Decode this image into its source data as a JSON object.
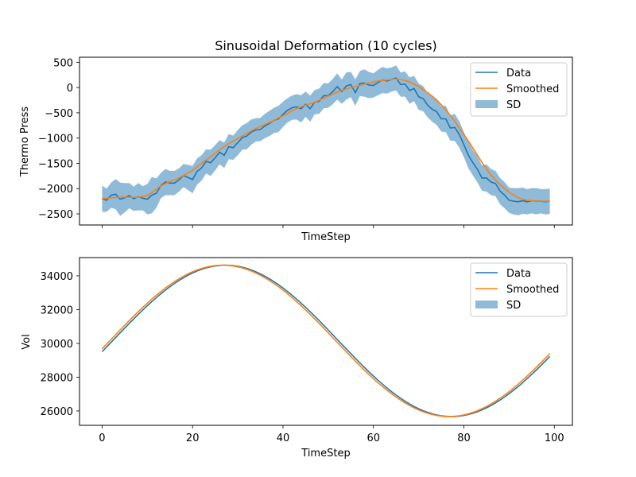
{
  "chart_data": [
    {
      "type": "line",
      "title": "Sinusoidal Deformation (10 cycles)",
      "xlabel": "TimeStep",
      "ylabel": "Thermo Press",
      "xlim": [
        -5,
        104
      ],
      "ylim": [
        -2720,
        600
      ],
      "xticks": [
        0,
        20,
        40,
        60,
        80,
        100
      ],
      "xtick_labels_visible": false,
      "yticks": [
        500,
        0,
        -500,
        -1000,
        -1500,
        -2000,
        -2500
      ],
      "ytick_labels": [
        "500",
        "0",
        "−500",
        "−1000",
        "−1500",
        "−2000",
        "−2500"
      ],
      "grid": false,
      "legend": {
        "placement": "top-right",
        "entries": [
          "Data",
          "Smoothed",
          "SD"
        ]
      },
      "colors": {
        "data": "#1f77b4",
        "smoothed": "#ff7f0e",
        "sd": "#1f77b4"
      },
      "x": [
        0,
        1,
        2,
        3,
        4,
        5,
        6,
        7,
        8,
        9,
        10,
        11,
        12,
        13,
        14,
        15,
        16,
        17,
        18,
        19,
        20,
        21,
        22,
        23,
        24,
        25,
        26,
        27,
        28,
        29,
        30,
        31,
        32,
        33,
        34,
        35,
        36,
        37,
        38,
        39,
        40,
        41,
        42,
        43,
        44,
        45,
        46,
        47,
        48,
        49,
        50,
        51,
        52,
        53,
        54,
        55,
        56,
        57,
        58,
        59,
        60,
        61,
        62,
        63,
        64,
        65,
        66,
        67,
        68,
        69,
        70,
        71,
        72,
        73,
        74,
        75,
        76,
        77,
        78,
        79,
        80,
        81,
        82,
        83,
        84,
        85,
        86,
        87,
        88,
        89,
        90,
        91,
        92,
        93,
        94,
        95,
        96,
        97,
        98,
        99
      ],
      "series": [
        {
          "name": "Data",
          "values": [
            -2200,
            -2230,
            -2130,
            -2110,
            -2210,
            -2180,
            -2140,
            -2200,
            -2160,
            -2190,
            -2210,
            -2130,
            -2090,
            -1940,
            -1870,
            -1890,
            -1890,
            -1830,
            -1740,
            -1780,
            -1820,
            -1660,
            -1590,
            -1460,
            -1490,
            -1390,
            -1280,
            -1340,
            -1170,
            -1190,
            -1090,
            -990,
            -960,
            -880,
            -840,
            -830,
            -760,
            -710,
            -650,
            -620,
            -530,
            -450,
            -400,
            -380,
            -420,
            -330,
            -420,
            -290,
            -270,
            -160,
            -160,
            -80,
            20,
            -80,
            30,
            60,
            -100,
            80,
            90,
            50,
            40,
            100,
            150,
            130,
            160,
            190,
            60,
            70,
            -60,
            -20,
            -180,
            -220,
            -350,
            -430,
            -480,
            -620,
            -620,
            -800,
            -790,
            -930,
            -1130,
            -1340,
            -1490,
            -1620,
            -1790,
            -1790,
            -1870,
            -1900,
            -2050,
            -2130,
            -2230,
            -2250,
            -2260,
            -2240,
            -2260,
            -2240,
            -2250,
            -2250,
            -2260,
            -2250
          ]
        },
        {
          "name": "Smoothed",
          "values": [
            -2200,
            -2190,
            -2180,
            -2175,
            -2170,
            -2170,
            -2170,
            -2172,
            -2170,
            -2160,
            -2140,
            -2080,
            -2010,
            -1950,
            -1900,
            -1860,
            -1830,
            -1790,
            -1740,
            -1690,
            -1640,
            -1570,
            -1500,
            -1430,
            -1370,
            -1300,
            -1230,
            -1170,
            -1110,
            -1060,
            -1010,
            -960,
            -910,
            -860,
            -810,
            -770,
            -730,
            -690,
            -650,
            -600,
            -560,
            -510,
            -460,
            -420,
            -380,
            -350,
            -320,
            -290,
            -250,
            -210,
            -170,
            -130,
            -90,
            -60,
            -30,
            0,
            20,
            40,
            70,
            90,
            110,
            130,
            140,
            150,
            160,
            170,
            160,
            140,
            110,
            70,
            20,
            -40,
            -100,
            -170,
            -250,
            -340,
            -440,
            -550,
            -670,
            -800,
            -930,
            -1060,
            -1200,
            -1340,
            -1480,
            -1610,
            -1730,
            -1830,
            -1920,
            -2000,
            -2070,
            -2130,
            -2180,
            -2210,
            -2230,
            -2240,
            -2250,
            -2250,
            -2250,
            -2250
          ]
        },
        {
          "name": "SD",
          "values": [
            -2200,
            -2230,
            -2130,
            -2110,
            -2210,
            -2180,
            -2140,
            -2200,
            -2160,
            -2190,
            -2210,
            -2130,
            -2090,
            -1940,
            -1870,
            -1890,
            -1890,
            -1830,
            -1740,
            -1780,
            -1820,
            -1660,
            -1590,
            -1460,
            -1490,
            -1390,
            -1280,
            -1340,
            -1170,
            -1190,
            -1090,
            -990,
            -960,
            -880,
            -840,
            -830,
            -760,
            -710,
            -650,
            -620,
            -530,
            -450,
            -400,
            -380,
            -420,
            -330,
            -420,
            -290,
            -270,
            -160,
            -160,
            -80,
            20,
            -80,
            30,
            60,
            -100,
            80,
            90,
            50,
            40,
            100,
            150,
            130,
            160,
            190,
            60,
            70,
            -60,
            -20,
            -180,
            -220,
            -350,
            -430,
            -480,
            -620,
            -620,
            -800,
            -790,
            -930,
            -1130,
            -1340,
            -1490,
            -1620,
            -1790,
            -1790,
            -1870,
            -1900,
            -2050,
            -2130,
            -2230,
            -2250,
            -2260,
            -2240,
            -2260,
            -2240,
            -2250,
            -2250,
            -2260,
            -2250
          ],
          "sd": [
            260,
            230,
            250,
            300,
            330,
            290,
            250,
            240,
            270,
            240,
            300,
            360,
            290,
            250,
            260,
            240,
            240,
            230,
            230,
            250,
            270,
            260,
            250,
            240,
            260,
            250,
            240,
            250,
            250,
            240,
            250,
            240,
            260,
            250,
            230,
            230,
            240,
            250,
            250,
            260,
            250,
            240,
            240,
            250,
            270,
            250,
            260,
            240,
            250,
            250,
            240,
            250,
            260,
            240,
            270,
            250,
            260,
            250,
            270,
            260,
            240,
            250,
            260,
            250,
            240,
            250,
            240,
            250,
            260,
            250,
            260,
            250,
            240,
            250,
            260,
            250,
            260,
            250,
            270,
            260,
            250,
            260,
            250,
            260,
            250,
            270,
            260,
            250,
            260,
            260,
            250,
            260,
            270,
            260,
            250,
            250,
            260,
            240,
            250,
            250
          ]
        }
      ]
    },
    {
      "type": "line",
      "title": "",
      "xlabel": "TimeStep",
      "ylabel": "Vol",
      "xlim": [
        -5,
        104
      ],
      "ylim": [
        25150,
        35080
      ],
      "xticks": [
        0,
        20,
        40,
        60,
        80,
        100
      ],
      "xtick_labels": [
        "0",
        "20",
        "40",
        "60",
        "80",
        "100"
      ],
      "yticks": [
        34000,
        32000,
        30000,
        28000,
        26000
      ],
      "ytick_labels": [
        "34000",
        "32000",
        "30000",
        "28000",
        "26000"
      ],
      "grid": false,
      "legend": {
        "placement": "top-right",
        "entries": [
          "Data",
          "Smoothed",
          "SD"
        ]
      },
      "colors": {
        "data": "#1f77b4",
        "smoothed": "#ff7f0e",
        "sd": "#1f77b4"
      },
      "sine_model": {
        "mean": 30150,
        "amplitude": 4480,
        "period": 100,
        "phase_offset": -2.3
      },
      "series": [
        {
          "name": "Data"
        },
        {
          "name": "Smoothed"
        },
        {
          "name": "SD"
        }
      ]
    }
  ]
}
